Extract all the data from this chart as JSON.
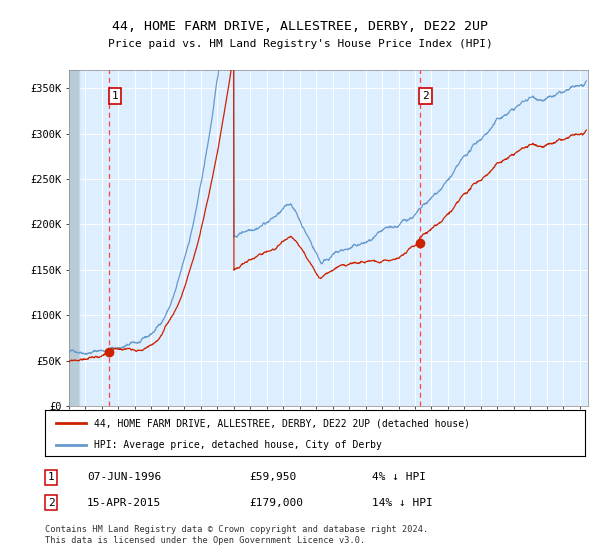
{
  "title1": "44, HOME FARM DRIVE, ALLESTREE, DERBY, DE22 2UP",
  "title2": "Price paid vs. HM Land Registry's House Price Index (HPI)",
  "hpi_color": "#6699cc",
  "price_color": "#cc2200",
  "dot_color": "#cc2200",
  "vline_color": "#ff4444",
  "background_color": "#ddeeff",
  "ylim": [
    0,
    370000
  ],
  "yticks": [
    0,
    50000,
    100000,
    150000,
    200000,
    250000,
    300000,
    350000
  ],
  "ytick_labels": [
    "£0",
    "£50K",
    "£100K",
    "£150K",
    "£200K",
    "£250K",
    "£300K",
    "£350K"
  ],
  "sale1_date_num": 1996.44,
  "sale1_price": 59950,
  "sale2_date_num": 2015.28,
  "sale2_price": 179000,
  "legend1": "44, HOME FARM DRIVE, ALLESTREE, DERBY, DE22 2UP (detached house)",
  "legend2": "HPI: Average price, detached house, City of Derby",
  "table_row1": [
    "1",
    "07-JUN-1996",
    "£59,950",
    "4% ↓ HPI"
  ],
  "table_row2": [
    "2",
    "15-APR-2015",
    "£179,000",
    "14% ↓ HPI"
  ],
  "footnote": "Contains HM Land Registry data © Crown copyright and database right 2024.\nThis data is licensed under the Open Government Licence v3.0.",
  "xstart": 1994.0,
  "xend": 2025.5
}
